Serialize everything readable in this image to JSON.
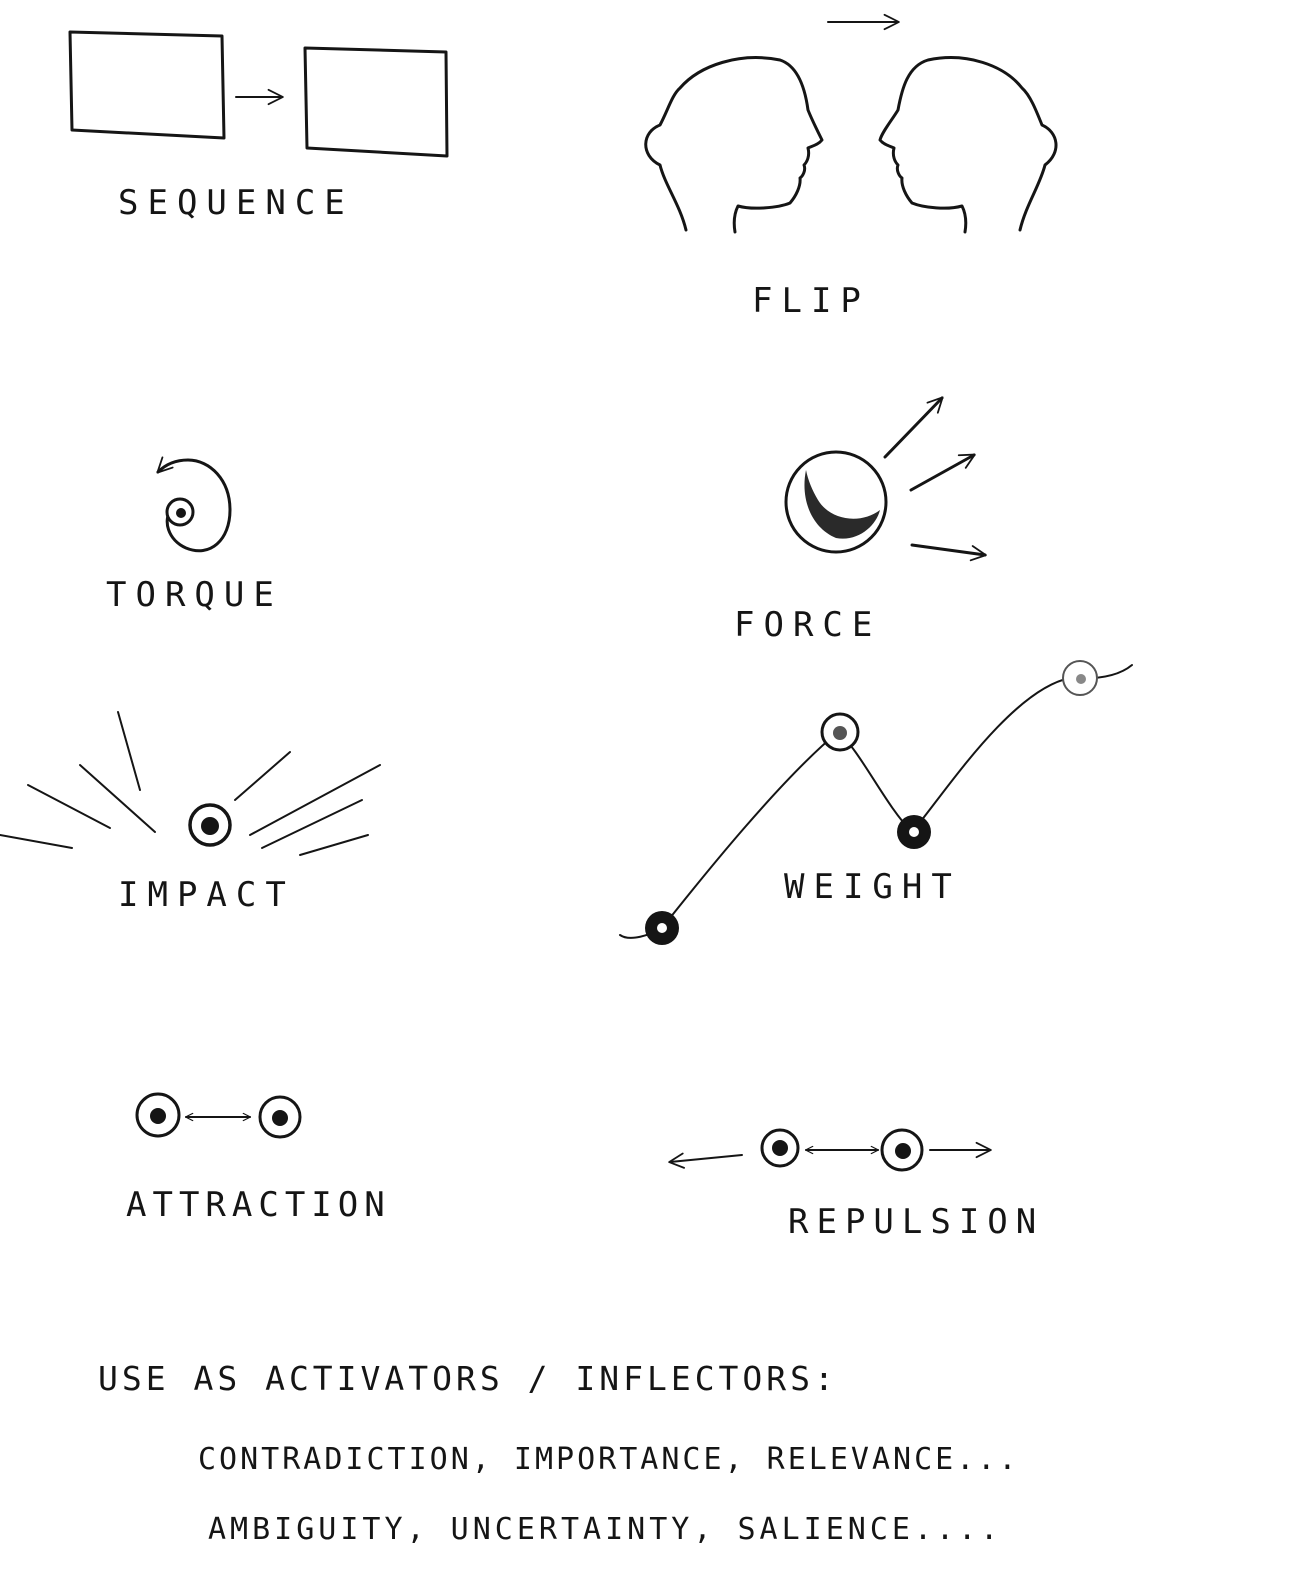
{
  "labels": {
    "sequence": "SEQUENCE",
    "flip": "FLIP",
    "torque": "TORQUE",
    "force": "FORCE",
    "impact": "IMPACT",
    "weight": "WEIGHT",
    "attraction": "ATTRACTION",
    "repulsion": "REPULSION"
  },
  "notes": {
    "heading": "USE AS ACTIVATORS / INFLECTORS:",
    "line1": "CONTRADICTION, IMPORTANCE, RELEVANCE...",
    "line2": "AMBIGUITY, UNCERTAINTY, SALIENCE...."
  },
  "colors": {
    "ink": "#151515",
    "paper": "#ffffff"
  }
}
